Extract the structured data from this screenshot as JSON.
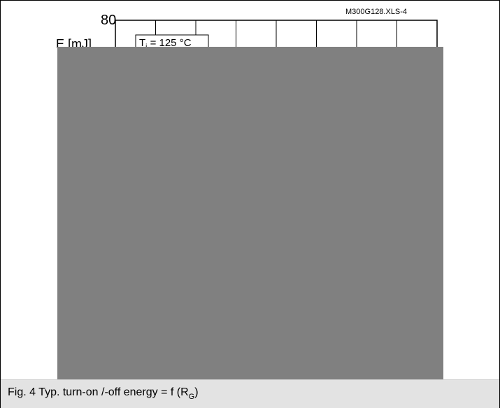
{
  "chart_data": {
    "type": "line",
    "file_label": "M300G128.XLS-4",
    "y_tick_top": "80",
    "ylabel": "E [mJ]",
    "annotation": {
      "prefix": "T",
      "subscript": "j",
      "suffix": " = 125 °C"
    },
    "x_gridlines": 8,
    "grid": true
  },
  "caption": {
    "prefix": "Fig. 4 Typ. turn-on /-off energy = f (R",
    "subscript": "G",
    "suffix": ")"
  }
}
